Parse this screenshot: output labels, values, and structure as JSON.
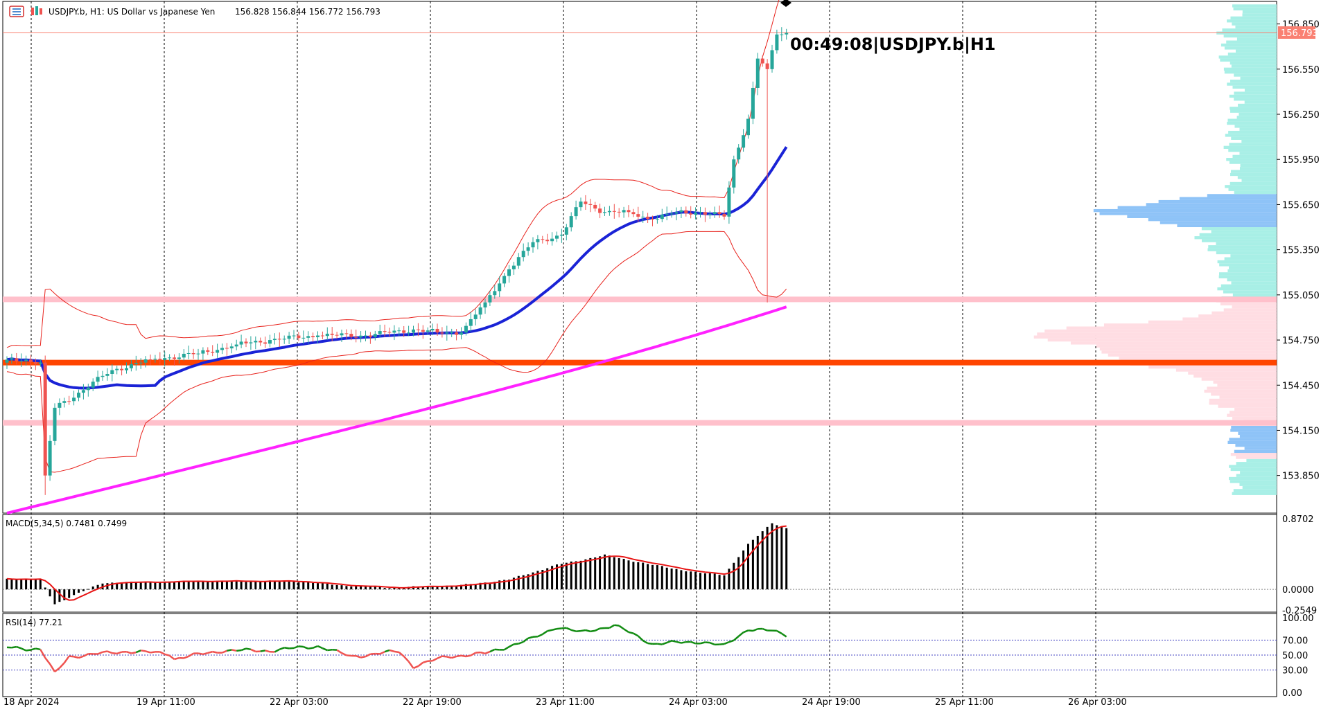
{
  "header": {
    "symbol_info": "USDJPY.b, H1:  US Dollar vs Japanese Yen",
    "ohlc": "156.828 156.844 156.772 156.793",
    "timer": "00:49:08|USDJPY.b|H1",
    "current_price": "156.793"
  },
  "colors": {
    "bull": "#26a69a",
    "bear": "#ef5350",
    "ma_fast": "#1a23d6",
    "ma_slow": "#ff22ff",
    "bollinger": "#e8221c",
    "level_main": "#ff4500",
    "level_zone": "#ffc0cb",
    "vp_cyan": "#a8efe6",
    "vp_blue": "#8ec3f7",
    "vp_pink": "#ffdde3",
    "macd_signal": "#e81414",
    "rsi_line": "#128c12"
  },
  "chart_data": [
    {
      "type": "candlestick",
      "name": "main",
      "y_tick_labels": [
        "156.850",
        "156.550",
        "156.250",
        "155.950",
        "155.650",
        "155.350",
        "155.050",
        "154.750",
        "154.450",
        "154.150",
        "153.850"
      ],
      "ylim": [
        153.6,
        157.0
      ],
      "x_tick_labels": [
        "18 Apr 2024",
        "19 Apr 11:00",
        "22 Apr 03:00",
        "22 Apr 19:00",
        "23 Apr 11:00",
        "24 Apr 03:00",
        "24 Apr 19:00",
        "25 Apr 11:00",
        "26 Apr 03:00"
      ],
      "support_level": 154.6,
      "zones": [
        155.02,
        154.2
      ],
      "current_price": 156.793,
      "anchors": [
        {
          "i": 0,
          "close": 154.62
        },
        {
          "i": 4,
          "close": 154.62
        },
        {
          "i": 7,
          "close": 154.6
        },
        {
          "i": 8,
          "close": 153.85,
          "low": 153.72
        },
        {
          "i": 10,
          "close": 154.3
        },
        {
          "i": 15,
          "close": 154.4
        },
        {
          "i": 22,
          "close": 154.55
        },
        {
          "i": 30,
          "close": 154.62
        },
        {
          "i": 40,
          "close": 154.66
        },
        {
          "i": 48,
          "close": 154.72
        },
        {
          "i": 55,
          "close": 154.75
        },
        {
          "i": 65,
          "close": 154.78
        },
        {
          "i": 75,
          "close": 154.78
        },
        {
          "i": 85,
          "close": 154.82
        },
        {
          "i": 90,
          "close": 154.8
        },
        {
          "i": 95,
          "close": 154.8
        },
        {
          "i": 100,
          "close": 155.0
        },
        {
          "i": 105,
          "close": 155.22
        },
        {
          "i": 110,
          "close": 155.4
        },
        {
          "i": 116,
          "close": 155.45
        },
        {
          "i": 120,
          "close": 155.67
        },
        {
          "i": 125,
          "close": 155.6
        },
        {
          "i": 130,
          "close": 155.6
        },
        {
          "i": 135,
          "close": 155.55
        },
        {
          "i": 140,
          "close": 155.6
        },
        {
          "i": 145,
          "close": 155.6
        },
        {
          "i": 150,
          "close": 155.57
        },
        {
          "i": 152,
          "close": 155.95
        },
        {
          "i": 155,
          "close": 156.22
        },
        {
          "i": 157,
          "close": 156.62
        },
        {
          "i": 159,
          "close": 156.55,
          "low": 155.0
        },
        {
          "i": 161,
          "close": 156.78
        },
        {
          "i": 163,
          "close": 156.79
        }
      ]
    },
    {
      "type": "bar",
      "name": "macd",
      "label": "MACD(5,34,5) 0.7481 0.7499",
      "y_tick_labels": [
        "0.8702",
        "0.0000",
        "-0.2549"
      ],
      "ylim": [
        -0.28,
        0.92
      ],
      "anchors": [
        {
          "i": 0,
          "v": 0.13
        },
        {
          "i": 7,
          "v": 0.12
        },
        {
          "i": 10,
          "v": -0.18
        },
        {
          "i": 13,
          "v": -0.1
        },
        {
          "i": 20,
          "v": 0.08
        },
        {
          "i": 40,
          "v": 0.1
        },
        {
          "i": 60,
          "v": 0.1
        },
        {
          "i": 70,
          "v": 0.05
        },
        {
          "i": 80,
          "v": 0.02
        },
        {
          "i": 95,
          "v": 0.05
        },
        {
          "i": 105,
          "v": 0.12
        },
        {
          "i": 115,
          "v": 0.3
        },
        {
          "i": 125,
          "v": 0.42
        },
        {
          "i": 135,
          "v": 0.3
        },
        {
          "i": 145,
          "v": 0.2
        },
        {
          "i": 150,
          "v": 0.18
        },
        {
          "i": 155,
          "v": 0.55
        },
        {
          "i": 160,
          "v": 0.82
        },
        {
          "i": 163,
          "v": 0.75
        }
      ]
    },
    {
      "type": "line",
      "name": "rsi",
      "label": "RSI(14) 77.21",
      "y_tick_labels": [
        "100.00",
        "70.00",
        "50.00",
        "30.00",
        "0.00"
      ],
      "ylim": [
        0,
        100
      ],
      "levels": [
        70,
        50,
        30
      ],
      "anchors": [
        {
          "i": 0,
          "v": 60
        },
        {
          "i": 7,
          "v": 58
        },
        {
          "i": 10,
          "v": 25
        },
        {
          "i": 13,
          "v": 48
        },
        {
          "i": 25,
          "v": 55
        },
        {
          "i": 34,
          "v": 52
        },
        {
          "i": 35,
          "v": 45
        },
        {
          "i": 45,
          "v": 56
        },
        {
          "i": 55,
          "v": 56
        },
        {
          "i": 65,
          "v": 62
        },
        {
          "i": 72,
          "v": 48
        },
        {
          "i": 82,
          "v": 55
        },
        {
          "i": 85,
          "v": 35
        },
        {
          "i": 92,
          "v": 48
        },
        {
          "i": 100,
          "v": 52
        },
        {
          "i": 110,
          "v": 72
        },
        {
          "i": 115,
          "v": 88
        },
        {
          "i": 120,
          "v": 80
        },
        {
          "i": 127,
          "v": 90
        },
        {
          "i": 135,
          "v": 65
        },
        {
          "i": 145,
          "v": 68
        },
        {
          "i": 150,
          "v": 62
        },
        {
          "i": 155,
          "v": 85
        },
        {
          "i": 160,
          "v": 82
        },
        {
          "i": 163,
          "v": 77
        }
      ]
    }
  ]
}
